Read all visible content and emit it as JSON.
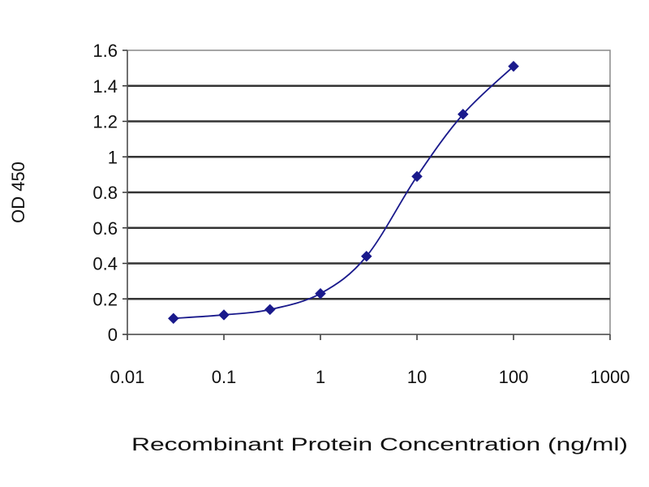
{
  "chart_data": {
    "type": "line",
    "title": "",
    "xlabel": "Recombinant Protein Concentration (ng/ml)",
    "ylabel": "OD 450",
    "xscale": "log",
    "xlim": [
      0.01,
      1000
    ],
    "ylim": [
      0,
      1.6
    ],
    "xticks": [
      {
        "value": 0.01,
        "label": "0.01"
      },
      {
        "value": 0.1,
        "label": "0.1"
      },
      {
        "value": 1,
        "label": "1"
      },
      {
        "value": 10,
        "label": "10"
      },
      {
        "value": 100,
        "label": "100"
      },
      {
        "value": 1000,
        "label": "1000"
      }
    ],
    "yticks": [
      {
        "value": 0,
        "label": "0"
      },
      {
        "value": 0.2,
        "label": "0.2"
      },
      {
        "value": 0.4,
        "label": "0.4"
      },
      {
        "value": 0.6,
        "label": "0.6"
      },
      {
        "value": 0.8,
        "label": "0.8"
      },
      {
        "value": 1,
        "label": "1"
      },
      {
        "value": 1.2,
        "label": "1.2"
      },
      {
        "value": 1.4,
        "label": "1.4"
      },
      {
        "value": 1.6,
        "label": "1.6"
      }
    ],
    "grid": "horizontal",
    "legend": "none",
    "series": [
      {
        "x": [
          0.03,
          0.1,
          0.3,
          1,
          3,
          10,
          30,
          100
        ],
        "y": [
          0.09,
          0.11,
          0.14,
          0.23,
          0.44,
          0.89,
          1.24,
          1.51
        ],
        "color": "#1a1a8c",
        "marker": "diamond"
      }
    ]
  }
}
